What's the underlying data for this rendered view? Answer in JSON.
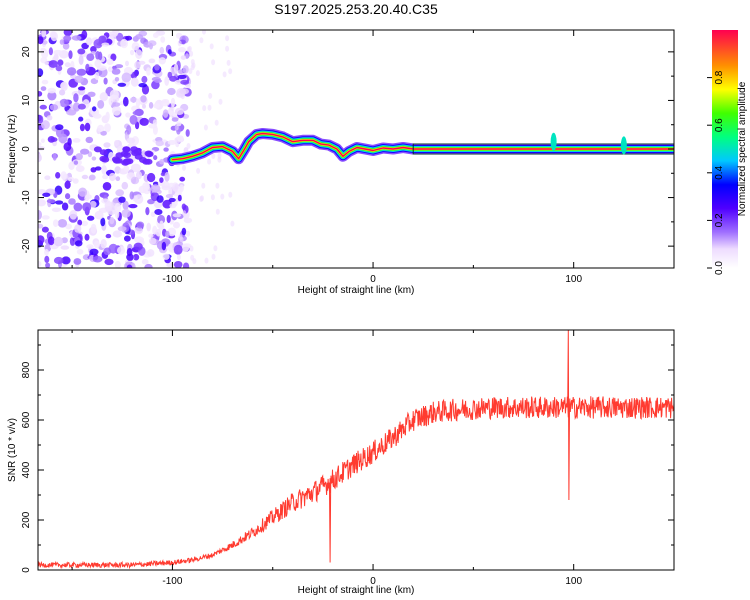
{
  "title": "S197.2025.253.20.40.C35",
  "chart_data": [
    {
      "type": "heatmap",
      "name": "spectrogram",
      "xlabel": "Height of straight line (km)",
      "ylabel": "Frequency (Hz)",
      "xlim": [
        -167,
        150
      ],
      "ylim": [
        -24.5,
        24.5
      ],
      "xticks": [
        -100,
        0,
        100
      ],
      "yticks": [
        -20,
        -10,
        0,
        10,
        20
      ],
      "noise_region_x": [
        -167,
        -100
      ],
      "ridge": [
        [
          -100,
          -2.2
        ],
        [
          -95,
          -2.0
        ],
        [
          -90,
          -1.5
        ],
        [
          -85,
          -0.8
        ],
        [
          -80,
          0.3
        ],
        [
          -75,
          0.5
        ],
        [
          -70,
          -0.5
        ],
        [
          -67,
          -2.0
        ],
        [
          -64,
          0.0
        ],
        [
          -62,
          1.5
        ],
        [
          -58,
          3.0
        ],
        [
          -55,
          3.2
        ],
        [
          -50,
          3.0
        ],
        [
          -45,
          2.5
        ],
        [
          -40,
          1.5
        ],
        [
          -35,
          1.8
        ],
        [
          -30,
          1.8
        ],
        [
          -26,
          1.0
        ],
        [
          -22,
          0.8
        ],
        [
          -18,
          0.0
        ],
        [
          -15,
          -1.5
        ],
        [
          -12,
          -0.5
        ],
        [
          -8,
          0.3
        ],
        [
          -4,
          0.0
        ],
        [
          0,
          -0.3
        ],
        [
          5,
          0.2
        ],
        [
          10,
          0.0
        ],
        [
          15,
          0.3
        ],
        [
          20,
          0.0
        ],
        [
          150,
          0.0
        ]
      ],
      "colorbar": {
        "label": "Normalized spectral amplitude",
        "range": [
          0,
          1
        ],
        "ticks": [
          0.0,
          0.2,
          0.4,
          0.6,
          0.8
        ],
        "tick_labels": [
          "0.0",
          "0.2",
          "0.4",
          "0.6",
          "0.8"
        ],
        "stops": [
          [
            0.0,
            "#ffffff"
          ],
          [
            0.08,
            "#eedcff"
          ],
          [
            0.15,
            "#a070ff"
          ],
          [
            0.25,
            "#5000ff"
          ],
          [
            0.35,
            "#0000ff"
          ],
          [
            0.45,
            "#00c8ff"
          ],
          [
            0.55,
            "#00ff80"
          ],
          [
            0.65,
            "#40ff00"
          ],
          [
            0.75,
            "#ffff00"
          ],
          [
            0.85,
            "#ff9000"
          ],
          [
            1.0,
            "#ff0050"
          ]
        ]
      }
    },
    {
      "type": "line",
      "name": "snr",
      "xlabel": "Height of straight line (km)",
      "ylabel": "SNR (10 * v/v)",
      "xlim": [
        -167,
        150
      ],
      "ylim": [
        0,
        960
      ],
      "xticks": [
        -100,
        0,
        100
      ],
      "yticks": [
        0,
        200,
        400,
        600,
        800
      ],
      "color": "#ff3b30",
      "series_profile": [
        [
          -167,
          20
        ],
        [
          -120,
          20
        ],
        [
          -100,
          30
        ],
        [
          -90,
          40
        ],
        [
          -80,
          60
        ],
        [
          -70,
          100
        ],
        [
          -60,
          150
        ],
        [
          -50,
          210
        ],
        [
          -40,
          270
        ],
        [
          -30,
          310
        ],
        [
          -20,
          360
        ],
        [
          -10,
          420
        ],
        [
          0,
          470
        ],
        [
          10,
          530
        ],
        [
          20,
          600
        ],
        [
          30,
          630
        ],
        [
          40,
          640
        ],
        [
          60,
          650
        ],
        [
          100,
          650
        ],
        [
          150,
          650
        ]
      ],
      "noise_amplitude": 45,
      "spikes": [
        {
          "x": 97,
          "min": 280,
          "max": 960
        },
        {
          "x": -22,
          "min": 30,
          "max": 330
        }
      ]
    }
  ]
}
